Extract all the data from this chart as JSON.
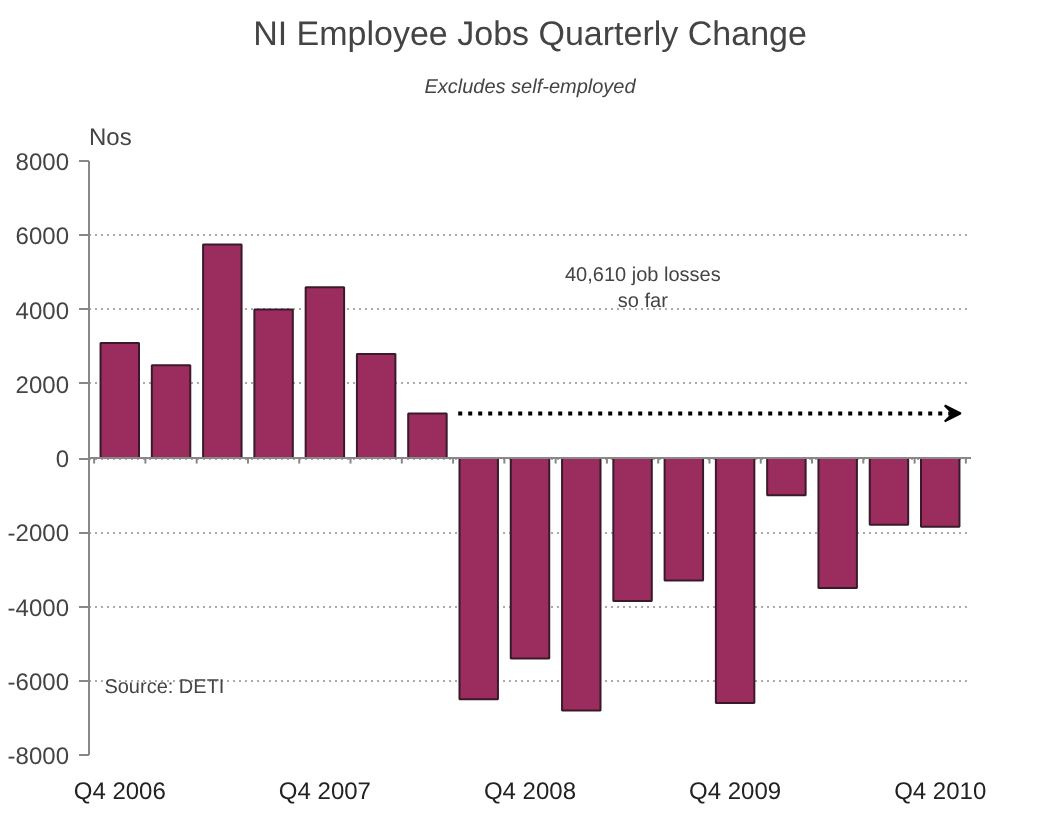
{
  "chart_data": {
    "type": "bar",
    "title": "NI Employee Jobs Quarterly Change",
    "subtitle": "Excludes self-employed",
    "ylabel": "Nos",
    "categories": [
      "Q4 2006",
      null,
      null,
      null,
      "Q4 2007",
      null,
      null,
      null,
      "Q4 2008",
      null,
      null,
      null,
      "Q4 2009",
      null,
      null,
      null,
      "Q4 2010"
    ],
    "values": [
      3100,
      2500,
      5750,
      4000,
      4600,
      2800,
      1200,
      -6500,
      -5400,
      -6800,
      -3850,
      -3300,
      -6600,
      -1000,
      -3500,
      -1800,
      -1850
    ],
    "color": "#9b2d5e",
    "ylim": [
      -8000,
      8000
    ],
    "yticks": [
      -8000,
      -6000,
      -4000,
      -2000,
      0,
      2000,
      4000,
      6000,
      8000
    ],
    "grid": "y",
    "annotations": [
      "40,610 job losses\nso far",
      "Source: DETI"
    ]
  }
}
